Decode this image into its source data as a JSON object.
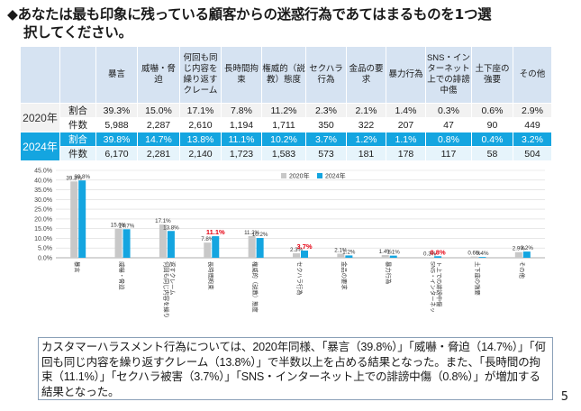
{
  "title": {
    "line1": "◆あなたは最も印象に残っている顧客からの迷惑行為であてはまるものを1つ選",
    "line2": "択してください。"
  },
  "table": {
    "headers": [
      "暴言",
      "威嚇・脅迫",
      "何回も同じ内容を繰り返すクレーム",
      "長時間拘束",
      "権威的（説教）態度",
      "セクハラ行為",
      "金品の要求",
      "暴力行為",
      "SNS・インターネット上での誹謗中傷",
      "土下座の強要",
      "その他"
    ],
    "rows": [
      {
        "year": "2020年",
        "pct_label": "割合",
        "pct": [
          "39.3%",
          "15.0%",
          "17.1%",
          "7.8%",
          "11.2%",
          "2.3%",
          "2.1%",
          "1.4%",
          "0.3%",
          "0.6%",
          "2.9%"
        ],
        "cnt_label": "件数",
        "cnt": [
          "5,988",
          "2,287",
          "2,610",
          "1,194",
          "1,711",
          "350",
          "322",
          "207",
          "47",
          "90",
          "449"
        ]
      },
      {
        "year": "2024年",
        "pct_label": "割合",
        "pct": [
          "39.8%",
          "14.7%",
          "13.8%",
          "11.1%",
          "10.2%",
          "3.7%",
          "1.2%",
          "1.1%",
          "0.8%",
          "0.4%",
          "3.2%"
        ],
        "cnt_label": "件数",
        "cnt": [
          "6,170",
          "2,281",
          "2,140",
          "1,723",
          "1,583",
          "573",
          "181",
          "178",
          "117",
          "58",
          "504"
        ]
      }
    ]
  },
  "chart_data": {
    "type": "bar",
    "categories": [
      "暴言",
      "威嚇・脅迫",
      "何回も同じ内容を繰り返すクレーム",
      "長時間拘束",
      "権威的（説教）態度",
      "セクハラ行為",
      "金品の要求",
      "暴力行為",
      "SNS・インターネット上での誹謗中傷",
      "土下座の強要",
      "その他"
    ],
    "series": [
      {
        "name": "2020年",
        "color": "#c8c8c8",
        "values": [
          39.3,
          15.0,
          17.1,
          7.8,
          11.2,
          2.3,
          2.1,
          1.4,
          0.3,
          0.6,
          2.9
        ]
      },
      {
        "name": "2024年",
        "color": "#14a5e0",
        "values": [
          39.8,
          14.7,
          13.8,
          11.1,
          10.2,
          3.7,
          1.2,
          1.1,
          0.8,
          0.4,
          3.2
        ]
      }
    ],
    "ylim": [
      0,
      45
    ],
    "yticks": [
      "0.0%",
      "5.0%",
      "10.0%",
      "15.0%",
      "20.0%",
      "25.0%",
      "30.0%",
      "35.0%",
      "40.0%",
      "45.0%"
    ],
    "highlight_color": "#e60012",
    "highlight_2024": [
      3,
      5,
      8
    ],
    "legend_position": "top-right"
  },
  "note": "カスタマーハラスメント行為については、2020年同様、「暴言（39.8%）」「威嚇・脅迫（14.7%）」「何回も同じ内容を繰り返すクレーム（13.8%）」で半数以上を占める結果となった。また、「長時間の拘束（11.1%）」「セクハラ被害（3.7%）」「SNS・インターネット上での誹謗中傷（0.8%）」が増加する結果となった。",
  "page_number": "5"
}
